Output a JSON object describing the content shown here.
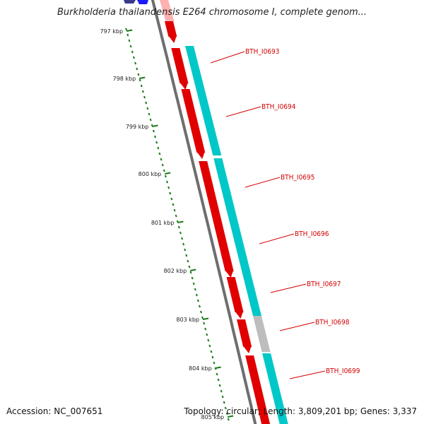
{
  "header": {
    "title": "Burkholderia thailandensis E264 chromosome I, complete genom..."
  },
  "footer": {
    "accession": "Accession: NC_007651",
    "summary": "Topology: circular; Length: 3,809,201 bp; Genes: 3,337"
  },
  "colors": {
    "gene_forward": "#e00000",
    "cds": "#00c8c8",
    "cds_partial": "#bdbdbd",
    "backbone": "#6e6e6e",
    "tick": "#1a7a1a",
    "label_line": "#d40000",
    "partial_top": "#ffb0b0",
    "partial_top_blue": "#1a1aff",
    "partial_top_navy": "#3a3a8a"
  },
  "ruler": {
    "labels": [
      "797 kbp",
      "798 kbp",
      "799 kbp",
      "800 kbp",
      "801 kbp",
      "802 kbp",
      "803 kbp",
      "804 kbp",
      "805 kbp"
    ]
  },
  "genes": [
    {
      "label": "BTH_I0693",
      "kind": "CDS"
    },
    {
      "label": "BTH_I0694",
      "kind": "CDS"
    },
    {
      "label": "BTH_I0695",
      "kind": "CDS"
    },
    {
      "label": "BTH_I0696",
      "kind": "CDS"
    },
    {
      "label": "BTH_I0697",
      "kind": "CDS"
    },
    {
      "label": "BTH_I0698",
      "kind": "partial"
    },
    {
      "label": "BTH_I0699",
      "kind": "CDS"
    }
  ]
}
